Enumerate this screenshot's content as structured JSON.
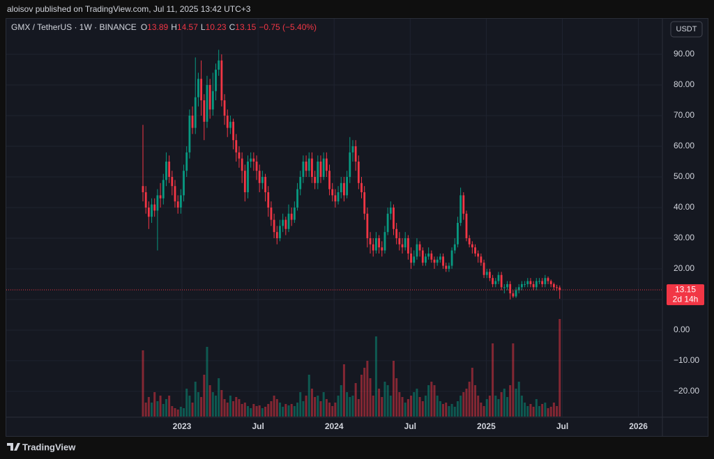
{
  "header": {
    "publisher": "aloisov published on TradingView.com, Jul 11, 2025 13:42 UTC+3",
    "brand": "TradingView"
  },
  "chart_data": {
    "type": "candlestick",
    "title": "GMX / TetherUS · 1W · BINANCE",
    "legend_labels": [
      "O",
      "H",
      "L",
      "C"
    ],
    "change": "−0.75 (−5.40%)",
    "currency": "USDT",
    "countdown": "2d 14h",
    "up_color": "#089981",
    "down_color": "#f23645",
    "xlabels": [
      "2023",
      "Jul",
      "2024",
      "Jul",
      "2025",
      "Jul",
      "2026"
    ],
    "ylim": [
      -28.2,
      101.6
    ],
    "yticks": [
      {
        "value": -20,
        "label": "−20.00"
      },
      {
        "value": -10,
        "label": "−10.00"
      },
      {
        "value": 0,
        "label": "0.00"
      },
      {
        "value": 10,
        "label": ""
      },
      {
        "value": 20,
        "label": "20.00"
      },
      {
        "value": 30,
        "label": "30.00"
      },
      {
        "value": 40,
        "label": "40.00"
      },
      {
        "value": 50,
        "label": "50.00"
      },
      {
        "value": 60,
        "label": "60.00"
      },
      {
        "value": 70,
        "label": "70.00"
      },
      {
        "value": 80,
        "label": "80.00"
      },
      {
        "value": 90,
        "label": "90.00"
      }
    ],
    "grid": true,
    "open": [
      47,
      45,
      40,
      37,
      41,
      39,
      44,
      43,
      49,
      55,
      50,
      47,
      42,
      40,
      44,
      52,
      58,
      70,
      66,
      76,
      82,
      75,
      68,
      80,
      72,
      78,
      85,
      88,
      75,
      70,
      66,
      68,
      62,
      58,
      56,
      52,
      45,
      55,
      56,
      55,
      52,
      48,
      50,
      45,
      40,
      36,
      32,
      30,
      34,
      36,
      33,
      38,
      36,
      40,
      46,
      50,
      55,
      52,
      56,
      50,
      48,
      55,
      50,
      56,
      52,
      46,
      44,
      42,
      45,
      48,
      44,
      50,
      58,
      60,
      55,
      48,
      45,
      38,
      30,
      28,
      26,
      30,
      27,
      26,
      32,
      38,
      40,
      33,
      30,
      28,
      27,
      30,
      25,
      22,
      24,
      28,
      26,
      22,
      24,
      25,
      23,
      22,
      23,
      24,
      21,
      20,
      21,
      26,
      28,
      35,
      44,
      38,
      30,
      28,
      27,
      25,
      24,
      22,
      18,
      19,
      17,
      15,
      16,
      18,
      14,
      14,
      15,
      12,
      11,
      13,
      14,
      15,
      15,
      16,
      15,
      14,
      16,
      16,
      15,
      17,
      16,
      15,
      14,
      13.89
    ],
    "high": [
      67,
      47,
      42,
      43,
      43,
      46,
      48,
      51,
      58,
      57,
      52,
      49,
      44,
      46,
      54,
      60,
      72,
      73,
      89,
      84,
      88,
      77,
      83,
      82,
      84,
      87,
      91.5,
      90,
      77,
      72,
      70,
      69,
      64,
      60,
      58,
      54,
      57,
      58,
      58,
      57,
      54,
      52,
      51,
      47,
      42,
      38,
      34,
      36,
      38,
      37,
      41,
      40,
      42,
      48,
      52,
      57,
      57,
      58,
      58,
      52,
      57,
      57,
      58,
      58,
      54,
      48,
      46,
      47,
      50,
      50,
      52,
      63,
      62,
      62,
      57,
      50,
      47,
      40,
      32,
      30,
      32,
      31,
      29,
      34,
      40,
      42,
      41,
      35,
      32,
      30,
      32,
      31,
      27,
      26,
      30,
      29,
      27,
      25,
      27,
      26,
      24,
      24,
      25,
      25,
      22,
      22,
      27,
      30,
      37,
      46.5,
      45,
      39,
      31,
      29,
      28,
      26,
      25,
      23,
      20,
      20,
      18,
      17,
      19,
      19,
      15,
      16,
      16,
      13,
      14,
      15,
      16,
      16,
      17,
      17,
      16,
      17,
      17,
      17,
      18,
      17.5,
      16.5,
      15.5,
      14.8,
      14.57
    ],
    "low": [
      42,
      38,
      33,
      35,
      37,
      26,
      40,
      41,
      47,
      48,
      44,
      40,
      38,
      38,
      42,
      50,
      56,
      64,
      64,
      73,
      70,
      62,
      66,
      69,
      70,
      75,
      83,
      73,
      67,
      63,
      64,
      59,
      55,
      53,
      48,
      42,
      43,
      53,
      52,
      49,
      45,
      46,
      42,
      37,
      34,
      30,
      28,
      29,
      32,
      31,
      32,
      34,
      35,
      39,
      44,
      48,
      50,
      50,
      48,
      46,
      46,
      48,
      49,
      50,
      44,
      42,
      40,
      41,
      43,
      42,
      43,
      48,
      55,
      52,
      46,
      43,
      36,
      27,
      25,
      24,
      25,
      25,
      24,
      25,
      31,
      36,
      31,
      28,
      26,
      25,
      26,
      23,
      20,
      21,
      23,
      24,
      21,
      21,
      23,
      22,
      20,
      21,
      22,
      20,
      19,
      19,
      20,
      25,
      27,
      34,
      36,
      29,
      27,
      25,
      24,
      22,
      21,
      17,
      17,
      16,
      14,
      14,
      15,
      13,
      12,
      13,
      10,
      10.5,
      10.5,
      12,
      13,
      14,
      14,
      14,
      13,
      13,
      15,
      14,
      14,
      15,
      14,
      13,
      12.8,
      10.23
    ],
    "close": [
      45,
      40,
      37,
      41,
      39,
      44,
      43,
      49,
      55,
      50,
      47,
      42,
      40,
      44,
      52,
      58,
      70,
      66,
      76,
      82,
      75,
      68,
      80,
      72,
      78,
      85,
      88,
      75,
      70,
      66,
      68,
      62,
      58,
      56,
      52,
      45,
      55,
      56,
      55,
      52,
      48,
      50,
      45,
      40,
      36,
      32,
      30,
      34,
      36,
      33,
      38,
      36,
      40,
      46,
      50,
      55,
      52,
      56,
      50,
      48,
      55,
      50,
      56,
      52,
      46,
      44,
      42,
      45,
      48,
      44,
      50,
      58,
      60,
      55,
      48,
      45,
      38,
      30,
      28,
      26,
      30,
      27,
      26,
      32,
      38,
      40,
      33,
      30,
      28,
      27,
      30,
      25,
      22,
      24,
      28,
      26,
      22,
      24,
      25,
      23,
      22,
      23,
      24,
      21,
      20,
      21,
      26,
      28,
      35,
      44,
      38,
      30,
      28,
      27,
      25,
      24,
      22,
      18,
      19,
      17,
      15,
      16,
      18,
      14,
      14,
      15,
      12,
      11,
      13,
      14,
      15,
      15,
      16,
      15,
      14,
      16,
      16,
      15,
      17,
      16,
      15,
      14,
      13.89,
      13.15
    ],
    "volumes": [
      95,
      20,
      28,
      20,
      35,
      22,
      30,
      18,
      25,
      30,
      15,
      12,
      10,
      14,
      12,
      40,
      30,
      20,
      50,
      35,
      28,
      60,
      100,
      45,
      35,
      30,
      55,
      38,
      25,
      20,
      30,
      22,
      28,
      25,
      18,
      20,
      15,
      12,
      18,
      15,
      16,
      12,
      14,
      18,
      22,
      30,
      25,
      20,
      14,
      18,
      16,
      18,
      15,
      20,
      35,
      22,
      30,
      60,
      40,
      28,
      30,
      22,
      35,
      25,
      20,
      15,
      20,
      30,
      45,
      75,
      35,
      28,
      30,
      48,
      25,
      60,
      70,
      80,
      55,
      30,
      115,
      40,
      28,
      50,
      45,
      30,
      80,
      55,
      35,
      28,
      20,
      25,
      30,
      35,
      40,
      28,
      22,
      30,
      45,
      50,
      45,
      30,
      22,
      18,
      20,
      15,
      18,
      14,
      22,
      30,
      35,
      40,
      50,
      70,
      45,
      30,
      20,
      15,
      25,
      30,
      105,
      30,
      25,
      35,
      40,
      28,
      45,
      105,
      40,
      50,
      30,
      20,
      15,
      18,
      14,
      25,
      15,
      18,
      20,
      12,
      14,
      20,
      15,
      140
    ]
  }
}
